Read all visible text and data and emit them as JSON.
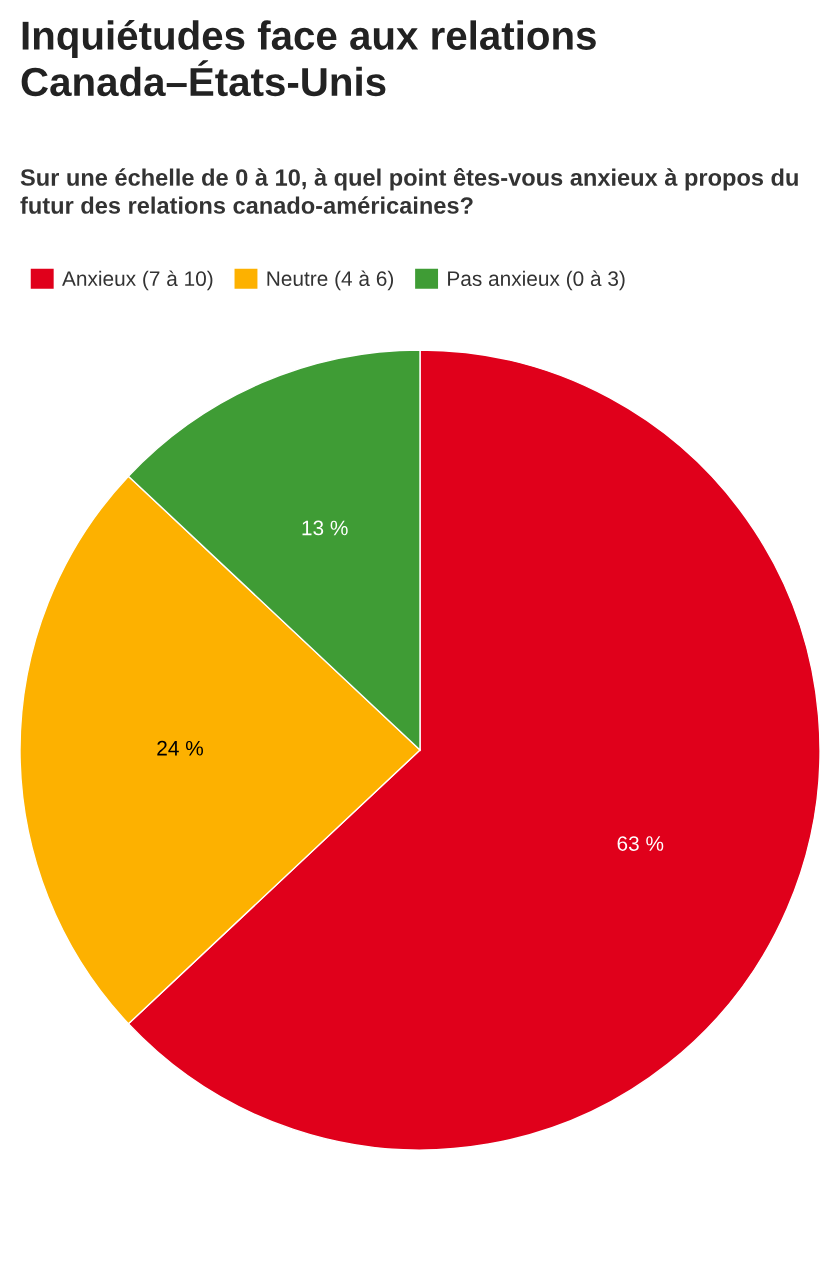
{
  "chart_data": {
    "type": "pie",
    "title": "Inquiétudes face aux relations Canada–États-Unis",
    "subtitle": "Sur une échelle de 0 à 10, à quel point êtes-vous anxieux à propos du futur des relations canado-américaines?",
    "categories": [
      "Anxieux (7 à 10)",
      "Neutre (4 à 6)",
      "Pas anxieux (0 à 3)"
    ],
    "values": [
      63,
      24,
      13
    ],
    "colors": [
      "#e0001b",
      "#fdb100",
      "#3f9c35"
    ],
    "value_labels": [
      "63 %",
      "24 %",
      "13 %"
    ],
    "legend": "top left"
  }
}
